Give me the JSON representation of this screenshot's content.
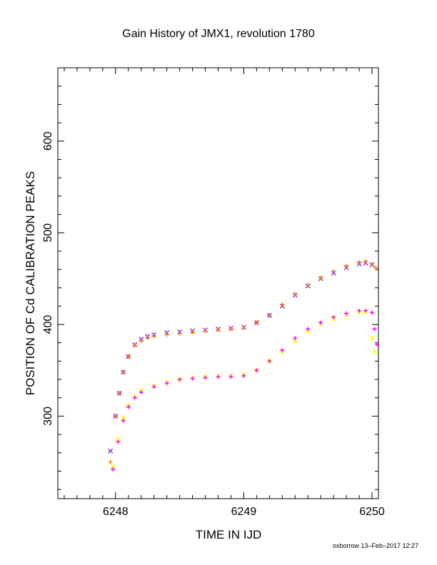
{
  "chart_data": {
    "type": "scatter",
    "title": "Gain History of JMX1, revolution 1780",
    "xlabel": "TIME IN IJD",
    "ylabel": "POSITION OF Cd CALIBRATION PEAKS",
    "xlim": [
      6247.55,
      6250.05
    ],
    "ylim": [
      210,
      680
    ],
    "xticks": [
      6248,
      6249,
      6250
    ],
    "yticks": [
      300,
      400,
      500,
      600
    ],
    "grid": false,
    "legend": "none",
    "footer": "oxborrow 13–Feb–2017 12:27",
    "series": [
      {
        "marker": "x",
        "color": "#8a2be2",
        "x": [
          6247.96,
          6248.0,
          6248.03,
          6248.06,
          6248.1,
          6248.15,
          6248.2,
          6248.25,
          6248.3,
          6248.4,
          6248.5,
          6248.6,
          6248.7,
          6248.8,
          6248.9,
          6249.0,
          6249.1,
          6249.2,
          6249.3,
          6249.4,
          6249.5,
          6249.6,
          6249.7,
          6249.8,
          6249.9,
          6249.95,
          6250.0
        ],
        "y": [
          262,
          300,
          325,
          348,
          365,
          378,
          384,
          387,
          389,
          391,
          392,
          393,
          394,
          395,
          396,
          397,
          402,
          410,
          420,
          432,
          442,
          450,
          456,
          462,
          466,
          467,
          465
        ]
      },
      {
        "marker": "+",
        "color": "#ff7f00",
        "x": [
          6247.96,
          6248.0,
          6248.03,
          6248.06,
          6248.1,
          6248.15,
          6248.2,
          6248.25,
          6248.3,
          6248.4,
          6248.5,
          6248.6,
          6248.7,
          6248.8,
          6248.9,
          6249.0,
          6249.1,
          6249.2,
          6249.3,
          6249.4,
          6249.5,
          6249.6,
          6249.7,
          6249.8,
          6249.9,
          6249.95,
          6250.0,
          6250.03
        ],
        "y": [
          250,
          300,
          325,
          348,
          365,
          377,
          382,
          385,
          387,
          389,
          390,
          391,
          393,
          394,
          395,
          396,
          402,
          410,
          422,
          433,
          443,
          451,
          458,
          464,
          468,
          469,
          466,
          462
        ]
      },
      {
        "marker": "x",
        "color": "#ffff00",
        "x": [
          6247.98,
          6248.02,
          6248.06,
          6248.1,
          6248.15,
          6248.2,
          6248.3,
          6248.4,
          6248.5,
          6248.6,
          6248.7,
          6248.8,
          6248.9,
          6249.0,
          6249.1,
          6249.2,
          6249.3,
          6249.4,
          6249.5,
          6249.6,
          6249.7,
          6249.8,
          6249.9,
          6249.95,
          6250.0,
          6250.02
        ],
        "y": [
          245,
          275,
          298,
          312,
          322,
          328,
          333,
          337,
          340,
          342,
          343,
          344,
          344,
          345,
          350,
          360,
          370,
          382,
          392,
          400,
          406,
          410,
          413,
          414,
          385,
          370
        ]
      },
      {
        "marker": "+",
        "color": "#ff00ff",
        "x": [
          6247.98,
          6248.02,
          6248.06,
          6248.1,
          6248.15,
          6248.2,
          6248.3,
          6248.4,
          6248.5,
          6248.6,
          6248.7,
          6248.8,
          6248.9,
          6249.0,
          6249.1,
          6249.2,
          6249.3,
          6249.4,
          6249.5,
          6249.6,
          6249.7,
          6249.8,
          6249.9,
          6249.95,
          6250.0,
          6250.02,
          6250.04
        ],
        "y": [
          242,
          272,
          295,
          310,
          320,
          326,
          332,
          336,
          340,
          341,
          342,
          343,
          343,
          344,
          350,
          360,
          372,
          385,
          395,
          402,
          408,
          412,
          415,
          415,
          413,
          395,
          378
        ]
      }
    ]
  }
}
